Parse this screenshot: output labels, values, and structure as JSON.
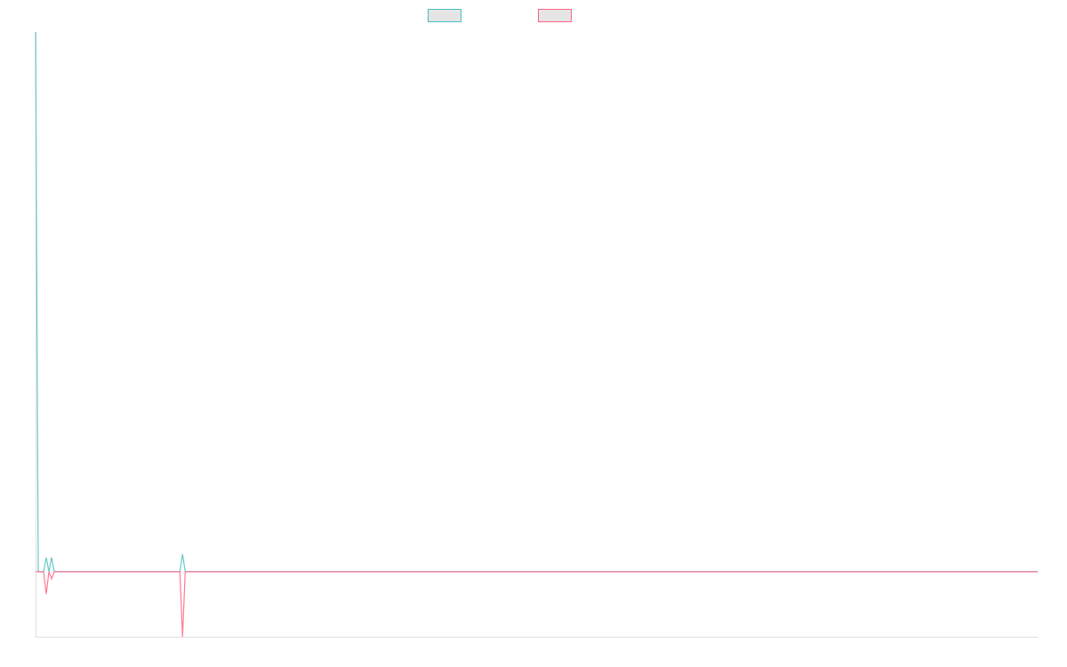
{
  "chart_data": {
    "type": "line",
    "title": "",
    "xlabel": "",
    "ylabel": "",
    "xlim": [
      0,
      375
    ],
    "ylim": [
      -1,
      8.3
    ],
    "grid": false,
    "legend": "top",
    "legend_fill": "#e5e5e5",
    "axis_color": "#e0e0e0",
    "series": [
      {
        "color": "#4bc0c0",
        "points": [
          [
            0,
            8.3
          ],
          [
            1,
            0
          ],
          [
            3,
            0
          ],
          [
            4,
            0.22
          ],
          [
            5,
            0
          ],
          [
            6,
            0.22
          ],
          [
            7,
            0
          ],
          [
            54,
            0
          ],
          [
            55,
            0.27
          ],
          [
            56,
            0
          ],
          [
            375,
            0
          ]
        ]
      },
      {
        "color": "#ff6384",
        "points": [
          [
            0,
            0
          ],
          [
            3,
            0
          ],
          [
            4,
            -0.34
          ],
          [
            5,
            0
          ],
          [
            6,
            -0.11
          ],
          [
            7,
            0
          ],
          [
            54,
            0
          ],
          [
            55,
            -1
          ],
          [
            56,
            0
          ],
          [
            375,
            0
          ]
        ]
      }
    ]
  }
}
